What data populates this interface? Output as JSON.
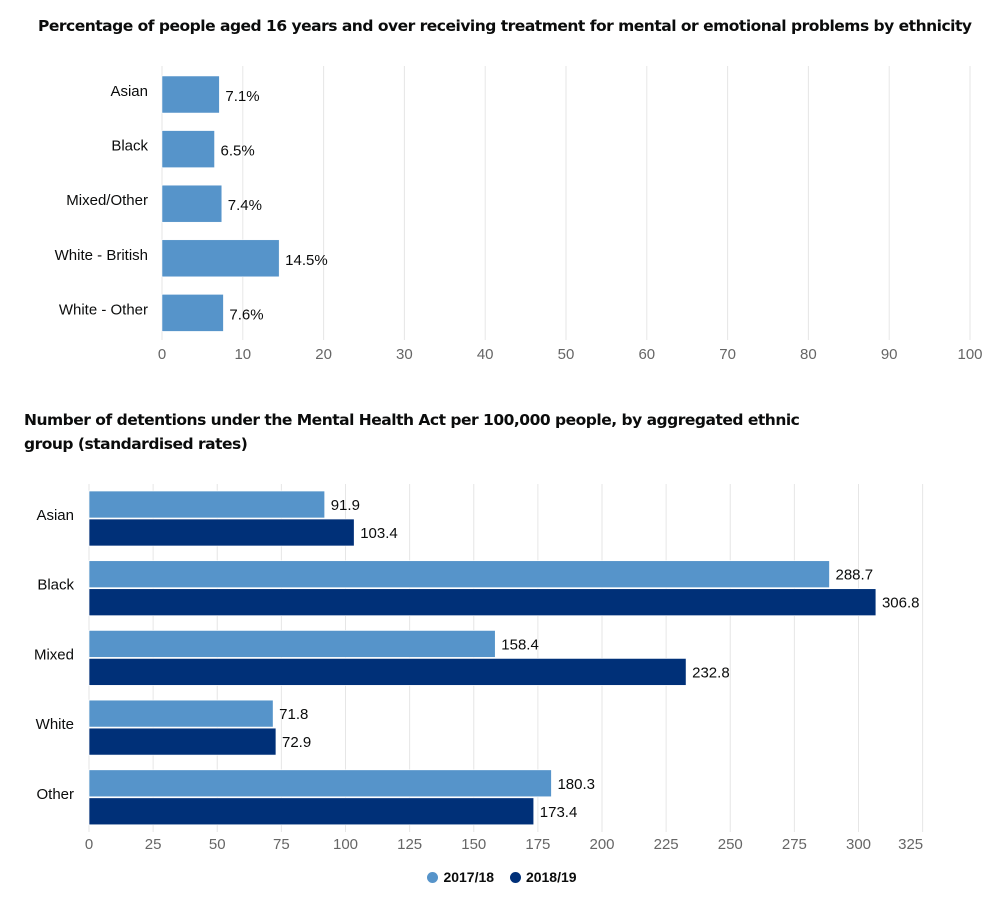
{
  "chart_data": [
    {
      "type": "bar",
      "orientation": "horizontal",
      "title": "Percentage of people aged 16 years and over receiving treatment for mental or emotional problems by ethnicity",
      "categories": [
        "Asian",
        "Black",
        "Mixed/Other",
        "White - British",
        "White - Other"
      ],
      "values": [
        7.1,
        6.5,
        7.4,
        14.5,
        7.6
      ],
      "data_labels": [
        "7.1%",
        "6.5%",
        "7.4%",
        "14.5%",
        "7.6%"
      ],
      "xlabel": "",
      "ylabel": "",
      "xlim": [
        0,
        100
      ],
      "ticks": [
        0,
        10,
        20,
        30,
        40,
        50,
        60,
        70,
        80,
        90,
        100
      ],
      "grid": true,
      "color": "#5694ca"
    },
    {
      "type": "bar",
      "orientation": "horizontal",
      "title": "Number of detentions under the Mental Health Act per 100,000 people, by aggregated ethnic group (standardised rates)",
      "categories": [
        "Asian",
        "Black",
        "Mixed",
        "White",
        "Other"
      ],
      "series": [
        {
          "name": "2017/18",
          "color": "#5694ca",
          "values": [
            91.9,
            288.7,
            158.4,
            71.8,
            180.3
          ]
        },
        {
          "name": "2018/19",
          "color": "#003078",
          "values": [
            103.4,
            306.8,
            232.8,
            72.9,
            173.4
          ]
        }
      ],
      "xlabel": "",
      "ylabel": "",
      "xlim": [
        0,
        325
      ],
      "ticks": [
        0,
        25,
        50,
        75,
        100,
        125,
        150,
        175,
        200,
        225,
        250,
        275,
        300,
        325
      ],
      "grid": true,
      "legend": "bottom-center"
    }
  ]
}
